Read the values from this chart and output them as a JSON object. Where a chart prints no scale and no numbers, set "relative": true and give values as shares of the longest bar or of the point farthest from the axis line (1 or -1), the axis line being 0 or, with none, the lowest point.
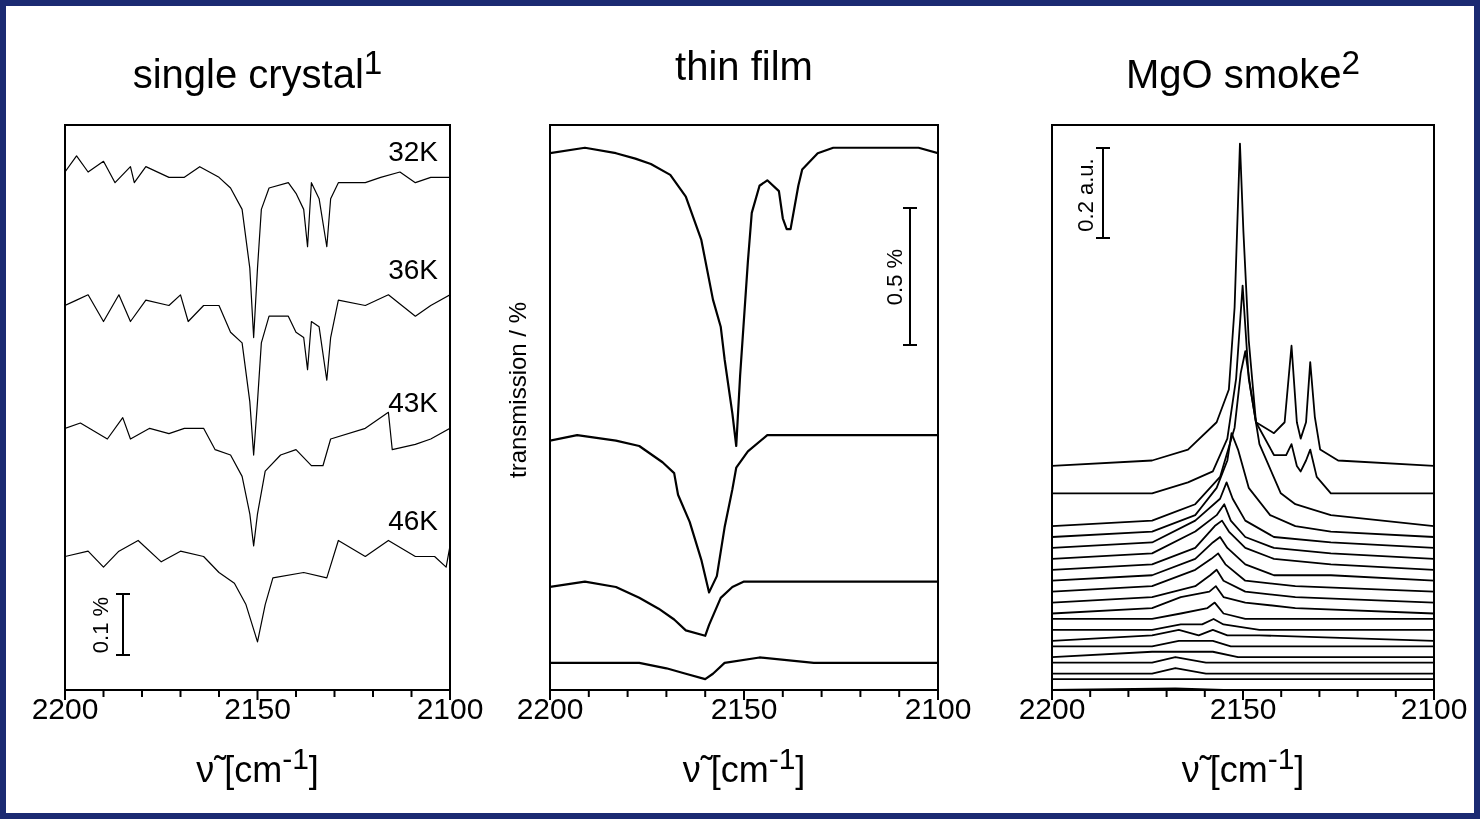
{
  "chart_data": [
    {
      "type": "line",
      "title": "single crystal$^{1}$",
      "xlabel": "ν̃ [cm$^{-1}$]",
      "relative": true,
      "marker": "none",
      "xlim": [
        2200,
        2100
      ],
      "xticks": [
        2200,
        {
          "value": 2190,
          "label": null
        },
        {
          "value": 2180,
          "label": null
        },
        {
          "value": 2170,
          "label": null
        },
        {
          "value": 2160,
          "label": null
        },
        2150,
        {
          "value": 2140,
          "label": null
        },
        {
          "value": 2130,
          "label": null
        },
        {
          "value": 2120,
          "label": null
        },
        {
          "value": 2110,
          "label": null
        },
        2100
      ],
      "annotations": [
        "0.1 %"
      ],
      "series": [
        {
          "name": "32K",
          "color": "#000000",
          "x": [
            2200,
            2197,
            2194,
            2190,
            2187,
            2183,
            2182,
            2179,
            2173,
            2169,
            2165,
            2160,
            2157,
            2154,
            2152,
            2151,
            2150,
            2149,
            2147,
            2142,
            2140,
            2138,
            2137,
            2136,
            2134,
            2132,
            2131,
            2129,
            2122,
            2118,
            2113,
            2109,
            2105,
            2100
          ],
          "values": [
            0.97,
            1,
            0.97,
            0.99,
            0.95,
            0.98,
            0.95,
            0.98,
            0.96,
            0.96,
            0.98,
            0.96,
            0.94,
            0.9,
            0.79,
            0.66,
            0.79,
            0.9,
            0.94,
            0.95,
            0.93,
            0.9,
            0.83,
            0.95,
            0.92,
            0.83,
            0.92,
            0.95,
            0.95,
            0.96,
            0.97,
            0.95,
            0.96,
            0.96
          ]
        },
        {
          "name": "36K",
          "color": "#000000",
          "x": [
            2200,
            2197,
            2194,
            2190,
            2186,
            2183,
            2179,
            2173,
            2170,
            2168,
            2164,
            2160,
            2157,
            2154,
            2152,
            2151,
            2150,
            2149,
            2147,
            2142,
            2140,
            2138,
            2137,
            2136,
            2134,
            2132,
            2131,
            2129,
            2122,
            2116,
            2109,
            2105,
            2100
          ],
          "values": [
            0.72,
            0.73,
            0.74,
            0.69,
            0.74,
            0.69,
            0.73,
            0.72,
            0.74,
            0.69,
            0.72,
            0.72,
            0.67,
            0.65,
            0.54,
            0.44,
            0.54,
            0.65,
            0.7,
            0.7,
            0.67,
            0.66,
            0.6,
            0.69,
            0.68,
            0.58,
            0.66,
            0.73,
            0.72,
            0.74,
            0.7,
            0.72,
            0.74
          ]
        },
        {
          "name": "43K",
          "color": "#000000",
          "x": [
            2200,
            2196,
            2189,
            2185,
            2183,
            2178,
            2173,
            2169,
            2164,
            2161,
            2157,
            2154,
            2152,
            2151,
            2150,
            2148,
            2144,
            2140,
            2136,
            2133,
            2131,
            2122,
            2116,
            2115,
            2109,
            2105,
            2100
          ],
          "values": [
            0.49,
            0.5,
            0.47,
            0.51,
            0.47,
            0.49,
            0.48,
            0.49,
            0.49,
            0.45,
            0.44,
            0.4,
            0.33,
            0.27,
            0.33,
            0.41,
            0.44,
            0.45,
            0.42,
            0.42,
            0.47,
            0.49,
            0.52,
            0.45,
            0.46,
            0.47,
            0.49
          ]
        },
        {
          "name": "46K",
          "color": "#000000",
          "x": [
            2200,
            2194,
            2190,
            2186,
            2181,
            2175,
            2170,
            2164,
            2160,
            2156,
            2153,
            2150,
            2148,
            2146,
            2138,
            2132,
            2129,
            2122,
            2116,
            2109,
            2104,
            2101,
            2100
          ],
          "values": [
            0.25,
            0.26,
            0.23,
            0.26,
            0.28,
            0.24,
            0.26,
            0.25,
            0.22,
            0.2,
            0.16,
            0.09,
            0.16,
            0.21,
            0.22,
            0.21,
            0.28,
            0.25,
            0.28,
            0.25,
            0.25,
            0.23,
            0.27
          ]
        }
      ]
    },
    {
      "type": "line",
      "title": "thin film",
      "xlabel": "ν̃ [cm$^{-1}$]",
      "ylabel": "transmission / %",
      "relative": true,
      "marker": "none",
      "xlim": [
        2200,
        2100
      ],
      "xticks": [
        2200,
        {
          "value": 2190,
          "label": null
        },
        {
          "value": 2180,
          "label": null
        },
        {
          "value": 2170,
          "label": null
        },
        {
          "value": 2160,
          "label": null
        },
        2150,
        {
          "value": 2140,
          "label": null
        },
        {
          "value": 2130,
          "label": null
        },
        {
          "value": 2120,
          "label": null
        },
        {
          "value": 2110,
          "label": null
        },
        2100
      ],
      "annotations": [
        "0.5 %"
      ],
      "series": [
        {
          "color": "#000000",
          "x": [
            2200,
            2191,
            2183,
            2178,
            2174,
            2169,
            2165,
            2161,
            2158,
            2156,
            2155,
            2153,
            2152,
            2151,
            2149,
            2148,
            2146,
            2144,
            2141,
            2140,
            2139,
            2138,
            2136,
            2135,
            2131,
            2127,
            2118,
            2112,
            2105,
            2100
          ],
          "values": [
            0.99,
            1,
            0.99,
            0.98,
            0.97,
            0.95,
            0.91,
            0.83,
            0.72,
            0.67,
            0.61,
            0.51,
            0.45,
            0.58,
            0.79,
            0.88,
            0.93,
            0.94,
            0.92,
            0.87,
            0.85,
            0.85,
            0.93,
            0.96,
            0.99,
            1,
            1,
            1,
            1,
            0.99
          ]
        },
        {
          "color": "#000000",
          "x": [
            2200,
            2193,
            2183,
            2177,
            2171,
            2168,
            2167,
            2164,
            2161,
            2159,
            2157,
            2155,
            2153,
            2152,
            2149,
            2144,
            2137,
            2127,
            2113,
            2100
          ],
          "values": [
            0.46,
            0.47,
            0.46,
            0.45,
            0.42,
            0.4,
            0.36,
            0.31,
            0.24,
            0.18,
            0.21,
            0.3,
            0.37,
            0.41,
            0.44,
            0.47,
            0.47,
            0.47,
            0.47,
            0.47
          ]
        },
        {
          "color": "#000000",
          "x": [
            2200,
            2191,
            2183,
            2177,
            2172,
            2168,
            2165,
            2160,
            2159,
            2156,
            2153,
            2150,
            2137,
            2127,
            2113,
            2100
          ],
          "values": [
            0.19,
            0.2,
            0.19,
            0.17,
            0.15,
            0.13,
            0.11,
            0.1,
            0.12,
            0.17,
            0.19,
            0.2,
            0.2,
            0.2,
            0.2,
            0.2
          ]
        },
        {
          "color": "#000000",
          "x": [
            2200,
            2188,
            2180,
            2177,
            2170,
            2165,
            2160,
            2158,
            2155,
            2146,
            2132,
            2118,
            2100
          ],
          "values": [
            0.05,
            0.05,
            0.05,
            0.05,
            0.04,
            0.03,
            0.02,
            0.03,
            0.05,
            0.06,
            0.05,
            0.05,
            0.05
          ]
        }
      ]
    },
    {
      "type": "line",
      "title": "MgO smoke$^{2}$",
      "xlabel": "ν̃ [cm$^{-1}$]",
      "relative": true,
      "marker": "none",
      "xlim": [
        2200,
        2100
      ],
      "xticks": [
        2200,
        {
          "value": 2190,
          "label": null
        },
        {
          "value": 2180,
          "label": null
        },
        {
          "value": 2170,
          "label": null
        },
        {
          "value": 2160,
          "label": null
        },
        2150,
        {
          "value": 2140,
          "label": null
        },
        {
          "value": 2130,
          "label": null
        },
        {
          "value": 2120,
          "label": null
        },
        {
          "value": 2110,
          "label": null
        },
        2100
      ],
      "annotations": [
        "0.2 a.u."
      ],
      "series": [
        {
          "color": "#000000",
          "x": [
            2200,
            2173.8,
            2164.4,
            2156.9,
            2153.7,
            2152.2,
            2150.8,
            2149.9,
            2148.5,
            2146.6,
            2141.9,
            2139.1,
            2137.3,
            2135.9,
            2134.9,
            2133.5,
            2132.4,
            2131.2,
            2129.8,
            2125.1,
            2100
          ],
          "values": [
            0.41,
            0.42,
            0.44,
            0.49,
            0.55,
            0.7,
            1.0,
            0.84,
            0.64,
            0.49,
            0.47,
            0.49,
            0.63,
            0.49,
            0.46,
            0.49,
            0.6,
            0.5,
            0.44,
            0.42,
            0.41
          ]
        },
        {
          "color": "#000000",
          "x": [
            2200,
            2173.8,
            2164.4,
            2157.9,
            2154.1,
            2151.8,
            2150.1,
            2148.5,
            2146.6,
            2141.9,
            2138.7,
            2137.3,
            2135.9,
            2134.9,
            2133.5,
            2132.4,
            2130.7,
            2127.0,
            2117.6,
            2100
          ],
          "values": [
            0.36,
            0.36,
            0.38,
            0.4,
            0.46,
            0.57,
            0.74,
            0.57,
            0.49,
            0.43,
            0.43,
            0.45,
            0.41,
            0.4,
            0.42,
            0.44,
            0.39,
            0.36,
            0.36,
            0.36
          ]
        },
        {
          "color": "#000000",
          "x": [
            2200,
            2173.8,
            2162.5,
            2156.0,
            2152.2,
            2150.6,
            2149.4,
            2148.0,
            2145.7,
            2140.1,
            2136.3,
            2127.0,
            2100
          ],
          "values": [
            0.3,
            0.31,
            0.34,
            0.39,
            0.48,
            0.58,
            0.62,
            0.55,
            0.45,
            0.36,
            0.34,
            0.32,
            0.3
          ]
        },
        {
          "color": "#000000",
          "x": [
            2200,
            2173.8,
            2162.5,
            2156.9,
            2154.1,
            2153.0,
            2151.3,
            2148.5,
            2142.9,
            2136.3,
            2127.0,
            2100
          ],
          "values": [
            0.28,
            0.29,
            0.32,
            0.37,
            0.42,
            0.47,
            0.44,
            0.37,
            0.32,
            0.3,
            0.29,
            0.28
          ]
        },
        {
          "color": "#000000",
          "x": [
            2200,
            2173.8,
            2162.5,
            2156.0,
            2154.3,
            2152.7,
            2149.4,
            2141.9,
            2127.0,
            2100
          ],
          "values": [
            0.26,
            0.27,
            0.31,
            0.35,
            0.38,
            0.35,
            0.31,
            0.28,
            0.27,
            0.26
          ]
        },
        {
          "color": "#000000",
          "x": [
            2200,
            2173.8,
            2162.5,
            2156.9,
            2154.9,
            2153.2,
            2149.4,
            2141.9,
            2127.0,
            2100
          ],
          "values": [
            0.24,
            0.25,
            0.29,
            0.32,
            0.34,
            0.31,
            0.28,
            0.26,
            0.25,
            0.24
          ]
        },
        {
          "color": "#000000",
          "x": [
            2200,
            2173.8,
            2162.5,
            2157.4,
            2155.5,
            2153.7,
            2149.4,
            2141.9,
            2127.0,
            2100
          ],
          "values": [
            0.22,
            0.23,
            0.26,
            0.3,
            0.31,
            0.29,
            0.26,
            0.24,
            0.23,
            0.22
          ]
        },
        {
          "color": "#000000",
          "x": [
            2200,
            2173.8,
            2162.5,
            2157.9,
            2156.0,
            2154.1,
            2149.4,
            2141.9,
            2127.0,
            2100
          ],
          "values": [
            0.2,
            0.21,
            0.24,
            0.27,
            0.28,
            0.26,
            0.23,
            0.21,
            0.21,
            0.2
          ]
        },
        {
          "color": "#000000",
          "x": [
            2200,
            2173.8,
            2162.5,
            2158.3,
            2156.5,
            2154.6,
            2149.4,
            2136.3,
            2100
          ],
          "values": [
            0.18,
            0.19,
            0.22,
            0.24,
            0.25,
            0.23,
            0.2,
            0.19,
            0.18
          ]
        },
        {
          "color": "#000000",
          "x": [
            2200,
            2173.8,
            2162.5,
            2158.6,
            2156.9,
            2155.1,
            2149.4,
            2136.3,
            2100
          ],
          "values": [
            0.16,
            0.17,
            0.19,
            0.21,
            0.22,
            0.2,
            0.18,
            0.17,
            0.16
          ]
        },
        {
          "color": "#000000",
          "x": [
            2200,
            2173.8,
            2166.3,
            2158.8,
            2157.1,
            2155.1,
            2149.4,
            2136.3,
            2100
          ],
          "values": [
            0.14,
            0.15,
            0.17,
            0.18,
            0.19,
            0.17,
            0.16,
            0.15,
            0.14
          ]
        },
        {
          "color": "#000000",
          "x": [
            2200,
            2173.8,
            2166.3,
            2159.3,
            2157.4,
            2155.1,
            2149.4,
            2136.3,
            2100
          ],
          "values": [
            0.13,
            0.13,
            0.14,
            0.15,
            0.16,
            0.14,
            0.13,
            0.13,
            0.13
          ]
        },
        {
          "color": "#000000",
          "x": [
            2200,
            2173.8,
            2166.3,
            2160.7,
            2157.7,
            2155.1,
            2145.7,
            2100
          ],
          "values": [
            0.11,
            0.11,
            0.12,
            0.12,
            0.13,
            0.12,
            0.11,
            0.11
          ]
        },
        {
          "color": "#000000",
          "x": [
            2200,
            2173.8,
            2166.8,
            2161.6,
            2157.9,
            2154.1,
            2145.7,
            2100
          ],
          "values": [
            0.09,
            0.1,
            0.11,
            0.1,
            0.11,
            0.1,
            0.1,
            0.09
          ]
        },
        {
          "color": "#000000",
          "x": [
            2200,
            2173.8,
            2166.8,
            2161.6,
            2157.9,
            2153.2,
            2100
          ],
          "values": [
            0.08,
            0.08,
            0.09,
            0.09,
            0.09,
            0.08,
            0.08
          ]
        },
        {
          "color": "#000000",
          "x": [
            2200,
            2173.8,
            2167.2,
            2161.6,
            2157.9,
            2151.3,
            2100
          ],
          "values": [
            0.06,
            0.07,
            0.07,
            0.07,
            0.07,
            0.06,
            0.06
          ]
        },
        {
          "color": "#000000",
          "x": [
            2200,
            2173.8,
            2167.7,
            2159.7,
            2145.7,
            2100
          ],
          "values": [
            0.05,
            0.05,
            0.06,
            0.05,
            0.05,
            0.05
          ]
        },
        {
          "color": "#000000",
          "x": [
            2200,
            2173.8,
            2167.7,
            2159.7,
            2100
          ],
          "values": [
            0.03,
            0.03,
            0.04,
            0.03,
            0.03
          ]
        },
        {
          "color": "#000000",
          "x": [
            2200,
            2173.8,
            2167.7,
            2159.7,
            2100
          ],
          "values": [
            0.02,
            0.02,
            0.02,
            0.02,
            0.02
          ]
        },
        {
          "color": "#000000",
          "x": [
            2200,
            2167.7,
            2155.1,
            2100
          ],
          "values": [
            0,
            0.003,
            0,
            0
          ]
        }
      ]
    }
  ]
}
